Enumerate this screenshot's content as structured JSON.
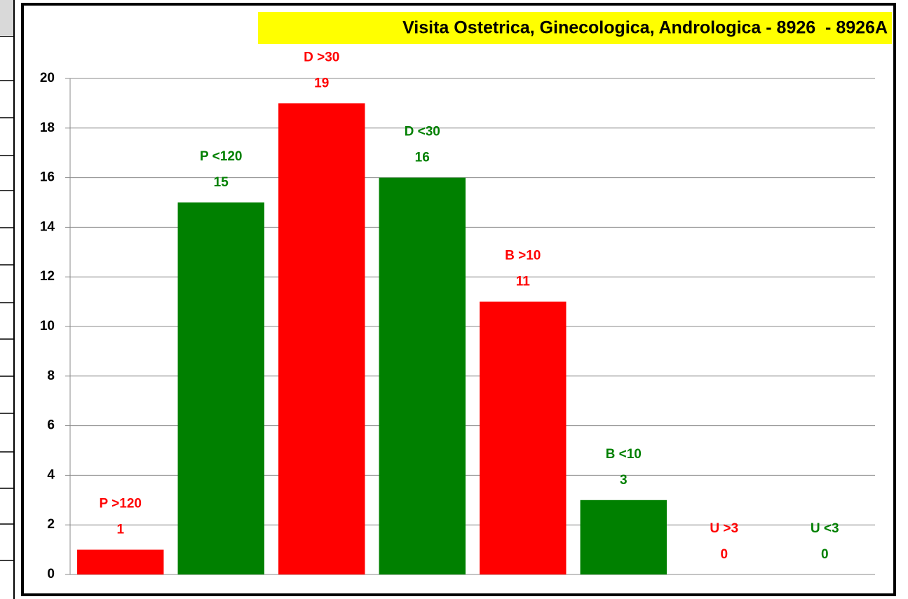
{
  "chart_data": {
    "type": "bar",
    "title": "Visita Ostetrica, Ginecologica, Andrologica - 8926  - 8926A",
    "categories": [
      "P >120",
      "P <120",
      "D >30",
      "D <30",
      "B >10",
      "B <10",
      "U >3",
      "U <3"
    ],
    "values": [
      1,
      15,
      19,
      16,
      11,
      3,
      0,
      0
    ],
    "colors": [
      "#ff0000",
      "#008000",
      "#ff0000",
      "#008000",
      "#ff0000",
      "#008000",
      "#ff0000",
      "#008000"
    ],
    "ylim": [
      0,
      20
    ],
    "yticks": [
      0,
      2,
      4,
      6,
      8,
      10,
      12,
      14,
      16,
      18,
      20
    ],
    "grid": true
  }
}
